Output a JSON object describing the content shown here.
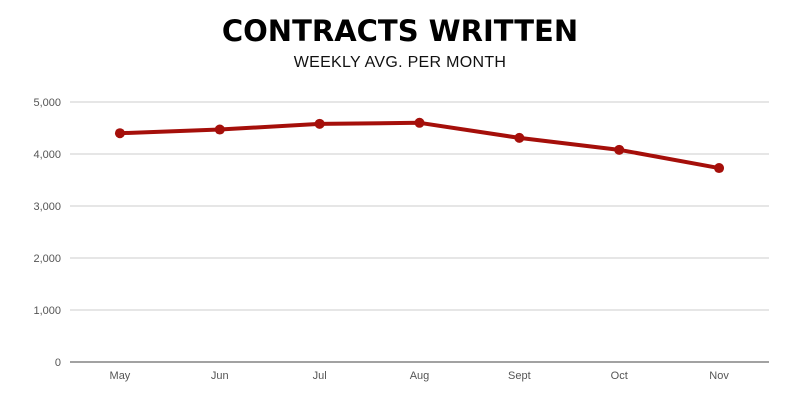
{
  "chart_data": {
    "type": "line",
    "title": "CONTRACTS WRITTEN",
    "subtitle": "WEEKLY AVG. PER MONTH",
    "categories": [
      "May",
      "Jun",
      "Jul",
      "Aug",
      "Sept",
      "Oct",
      "Nov"
    ],
    "series": [
      {
        "values": [
          4400,
          4470,
          4580,
          4600,
          4310,
          4080,
          3730
        ],
        "color": "#a50f0a"
      }
    ],
    "ylim": [
      0,
      5000
    ],
    "yticks": [
      0,
      1000,
      2000,
      3000,
      4000,
      5000
    ],
    "ytick_labels": [
      "0",
      "1,000",
      "2,000",
      "3,000",
      "4,000",
      "5,000"
    ],
    "grid": true,
    "gridline_color": "#cccccc"
  }
}
